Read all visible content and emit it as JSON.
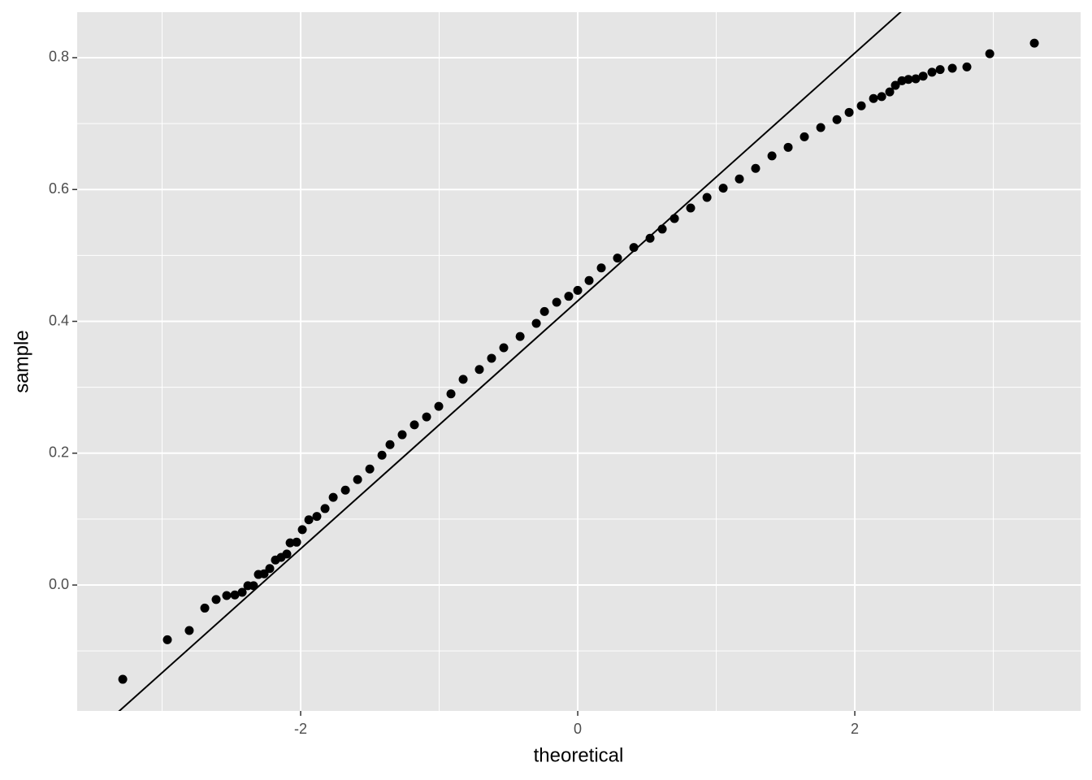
{
  "chart_data": {
    "type": "scatter",
    "x_label": "theoretical",
    "y_label": "sample",
    "xlim": [
      -3.613,
      3.63
    ],
    "ylim": [
      -0.191,
      0.869
    ],
    "xticks": [
      -2,
      0,
      2
    ],
    "yticks": [
      {
        "value": 0,
        "label": "0.0"
      },
      0.2,
      0.4,
      0.6,
      0.8
    ],
    "xminor": [
      -3,
      -1,
      1,
      3
    ],
    "yminor": [
      -0.1,
      0.1,
      0.3,
      0.5,
      0.7
    ],
    "grid": true,
    "panel_color": "#e5e5e5",
    "color": "#000000",
    "reference_line": {
      "intercept": 0.431,
      "slope": 0.188
    },
    "x": [
      -3.284,
      -2.962,
      -2.804,
      -2.692,
      -2.61,
      -2.534,
      -2.475,
      -2.422,
      -2.381,
      -2.34,
      -2.305,
      -2.264,
      -2.223,
      -2.182,
      -2.141,
      -2.1,
      -2.076,
      -2.029,
      -1.988,
      -1.941,
      -1.883,
      -1.824,
      -1.765,
      -1.677,
      -1.589,
      -1.501,
      -1.413,
      -1.355,
      -1.267,
      -1.179,
      -1.091,
      -1.003,
      -0.915,
      -0.827,
      -0.71,
      -0.622,
      -0.534,
      -0.416,
      -0.299,
      -0.24,
      -0.152,
      -0.065,
      0,
      0.082,
      0.17,
      0.287,
      0.405,
      0.522,
      0.61,
      0.698,
      0.815,
      0.933,
      1.05,
      1.167,
      1.284,
      1.402,
      1.519,
      1.636,
      1.754,
      1.871,
      1.959,
      2.047,
      2.135,
      2.194,
      2.252,
      2.293,
      2.34,
      2.387,
      2.44,
      2.493,
      2.557,
      2.616,
      2.704,
      2.809,
      2.974,
      3.296
    ],
    "values": [
      -0.143,
      -0.083,
      -0.069,
      -0.035,
      -0.022,
      -0.016,
      -0.015,
      -0.011,
      -0.001,
      -0.001,
      0.016,
      0.017,
      0.025,
      0.038,
      0.042,
      0.047,
      0.064,
      0.065,
      0.084,
      0.099,
      0.104,
      0.116,
      0.133,
      0.144,
      0.16,
      0.176,
      0.197,
      0.213,
      0.228,
      0.243,
      0.255,
      0.271,
      0.29,
      0.312,
      0.327,
      0.344,
      0.36,
      0.377,
      0.397,
      0.415,
      0.429,
      0.438,
      0.447,
      0.462,
      0.481,
      0.496,
      0.512,
      0.526,
      0.54,
      0.556,
      0.572,
      0.588,
      0.602,
      0.616,
      0.632,
      0.651,
      0.664,
      0.68,
      0.694,
      0.706,
      0.717,
      0.727,
      0.738,
      0.741,
      0.748,
      0.758,
      0.765,
      0.767,
      0.768,
      0.772,
      0.778,
      0.782,
      0.784,
      0.786,
      0.806,
      0.822
    ]
  }
}
